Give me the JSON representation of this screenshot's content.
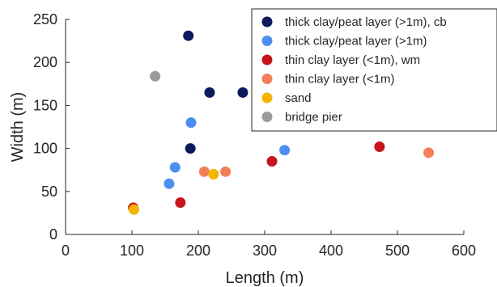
{
  "chart_data": {
    "type": "scatter",
    "xlabel": "Length (m)",
    "ylabel": "Width (m)",
    "xlim": [
      0,
      600
    ],
    "ylim": [
      0,
      250
    ],
    "xticks": [
      0,
      100,
      200,
      300,
      400,
      500,
      600
    ],
    "yticks": [
      0,
      50,
      100,
      150,
      200,
      250
    ],
    "grid": false,
    "legend_position": "top-right",
    "series": [
      {
        "name": "thick clay/peat layer (>1m), cb",
        "color": "#0d1a5e",
        "points": [
          [
            185,
            231
          ],
          [
            217,
            165
          ],
          [
            267,
            165
          ],
          [
            188,
            100
          ]
        ]
      },
      {
        "name": "thick clay/peat layer (>1m)",
        "color": "#4d8ff0",
        "points": [
          [
            189,
            130
          ],
          [
            330,
            98
          ],
          [
            165,
            78
          ],
          [
            156,
            59
          ]
        ]
      },
      {
        "name": "thin clay layer (<1m), wm",
        "color": "#c8141c",
        "points": [
          [
            473,
            102
          ],
          [
            311,
            85
          ],
          [
            173,
            37
          ],
          [
            102,
            31
          ]
        ]
      },
      {
        "name": "thin clay layer (<1m)",
        "color": "#f27f59",
        "points": [
          [
            547,
            95
          ],
          [
            209,
            73
          ],
          [
            241,
            73
          ]
        ]
      },
      {
        "name": "sand",
        "color": "#f5b400",
        "points": [
          [
            223,
            70
          ],
          [
            103,
            29
          ]
        ]
      },
      {
        "name": "bridge pier",
        "color": "#9a9a9a",
        "points": [
          [
            135,
            184
          ]
        ]
      }
    ]
  }
}
